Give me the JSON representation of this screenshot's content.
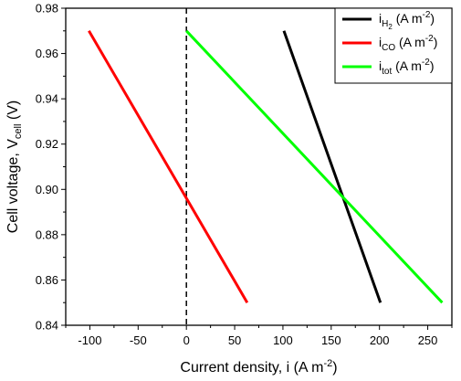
{
  "chart_data": {
    "type": "line",
    "xlabel": {
      "main": "Current density, i (A m",
      "sup": "-2",
      "end": ")"
    },
    "ylabel": {
      "main": "Cell voltage, V",
      "sub": "cell",
      "end": " (V)"
    },
    "xlim": [
      -125,
      275
    ],
    "ylim": [
      0.84,
      0.98
    ],
    "x_ticks": [
      -100,
      -50,
      0,
      50,
      100,
      150,
      200,
      250
    ],
    "y_ticks": [
      0.84,
      0.86,
      0.88,
      0.9,
      0.92,
      0.94,
      0.96,
      0.98
    ],
    "x_tick_labels": [
      "-100",
      "-50",
      "0",
      "50",
      "100",
      "150",
      "200",
      "250"
    ],
    "y_tick_labels": [
      "0.84",
      "0.86",
      "0.88",
      "0.90",
      "0.92",
      "0.94",
      "0.96",
      "0.98"
    ],
    "vline": {
      "x": 0,
      "style": "dashed",
      "color": "#000000"
    },
    "legend": {
      "placement": "top-right"
    },
    "series": [
      {
        "key": "h2",
        "name": {
          "base": "i",
          "sub": "H",
          "subsub": "2",
          "unit": " (A m",
          "sup": "-2",
          "end": ")"
        },
        "color": "#000000",
        "points": [
          [
            101,
            0.97
          ],
          [
            201,
            0.85
          ]
        ]
      },
      {
        "key": "co",
        "name": {
          "base": "i",
          "sub": "CO",
          "unit": " (A m",
          "sup": "-2",
          "end": ")"
        },
        "color": "#ff0000",
        "points": [
          [
            -101,
            0.97
          ],
          [
            63,
            0.85
          ]
        ]
      },
      {
        "key": "tot",
        "name": {
          "base": "i",
          "sub": "tot",
          "unit": " (A m",
          "sup": "-2",
          "end": ")"
        },
        "color": "#00ff00",
        "points": [
          [
            0,
            0.97
          ],
          [
            265,
            0.85
          ]
        ]
      }
    ]
  }
}
